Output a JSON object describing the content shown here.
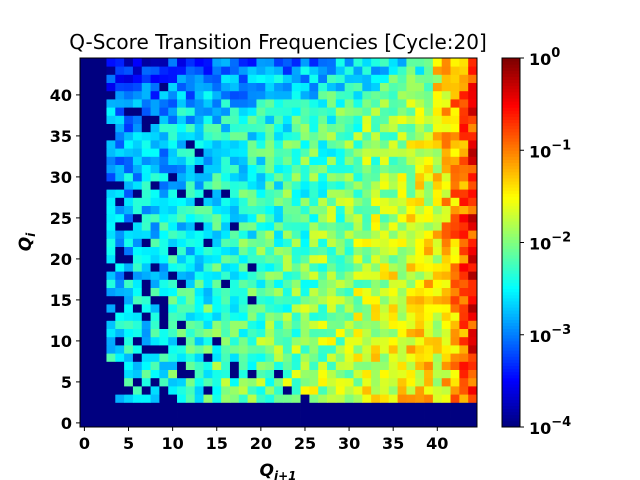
{
  "chart_data": {
    "type": "heatmap",
    "title": "Q-Score Transition Frequencies [Cycle:20]",
    "xlabel_base": "Q",
    "xlabel_sub": "i+1",
    "ylabel_base": "Q",
    "ylabel_sub": "i",
    "x_range": [
      0,
      44
    ],
    "y_range": [
      0,
      44
    ],
    "x_ticks": [
      0,
      5,
      10,
      15,
      20,
      25,
      30,
      35,
      40
    ],
    "y_ticks": [
      0,
      5,
      10,
      15,
      20,
      25,
      30,
      35,
      40
    ],
    "colormap": "jet",
    "color_scale": "log",
    "color_range": [
      0.0001,
      1
    ],
    "colorbar_ticks": [
      {
        "value": 1,
        "base": "10",
        "exp": "0"
      },
      {
        "value": 0.1,
        "base": "10",
        "exp": "−1"
      },
      {
        "value": 0.01,
        "base": "10",
        "exp": "−2"
      },
      {
        "value": 0.001,
        "base": "10",
        "exp": "−3"
      },
      {
        "value": 0.0001,
        "base": "10",
        "exp": "−4"
      }
    ],
    "pattern_description": {
      "zero_rows_below": 3,
      "zero_column_left_edge": 2,
      "right_columns_log10": {
        "40": -1.5,
        "41": -1.3,
        "42": -1.1,
        "43": -0.9,
        "44": -0.6
      }
    }
  }
}
